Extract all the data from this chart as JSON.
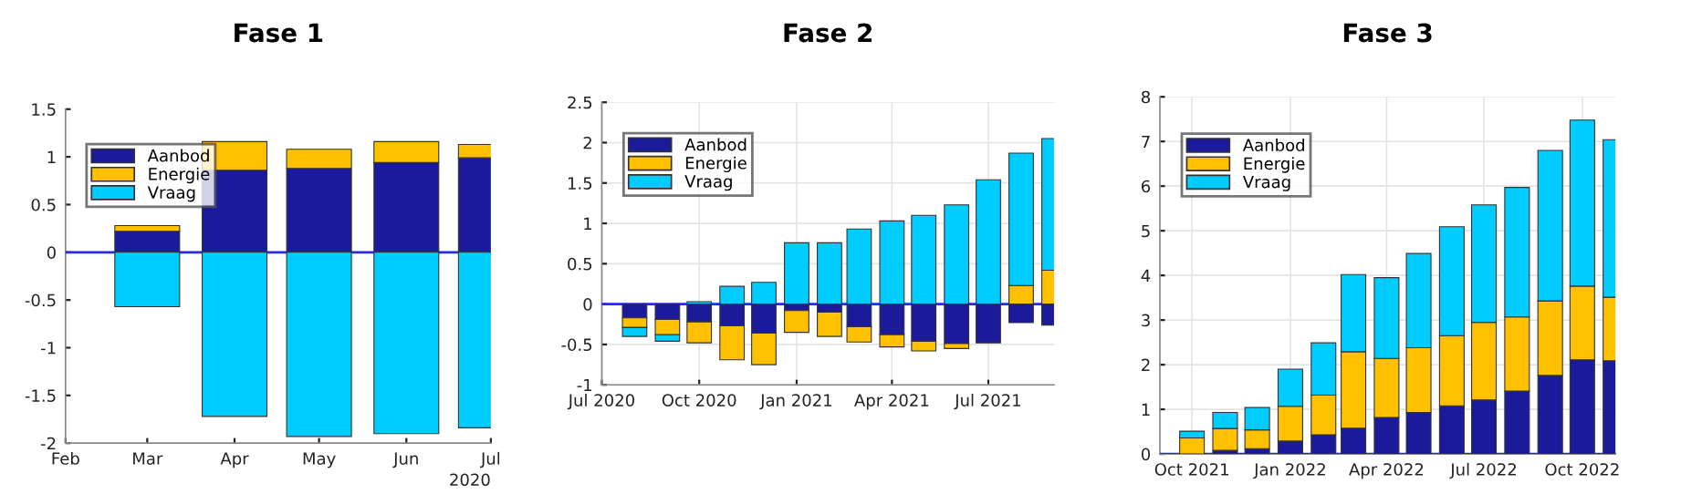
{
  "chart_data": [
    {
      "type": "bar",
      "title": "Fase 1",
      "stacked": true,
      "legend": "top left",
      "grid": false,
      "x": [
        "2020-03",
        "2020-04",
        "2020-05",
        "2020-06",
        "2020-07"
      ],
      "series": [
        {
          "name": "Aanbod",
          "color": "#1a1a9a",
          "values": [
            0.22,
            0.86,
            0.88,
            0.94,
            0.99
          ]
        },
        {
          "name": "Energie",
          "color": "#ffc000",
          "values": [
            0.06,
            0.3,
            0.2,
            0.22,
            0.14
          ]
        },
        {
          "name": "Vraag",
          "color": "#00ccff",
          "values": [
            -0.57,
            -1.72,
            -1.93,
            -1.9,
            -1.84
          ]
        }
      ],
      "xlim": [
        "2020-02",
        "2020-07"
      ],
      "xticks": [
        {
          "value": "2020-02",
          "label": "Feb"
        },
        {
          "value": "2020-03",
          "label": "Mar"
        },
        {
          "value": "2020-04",
          "label": "Apr"
        },
        {
          "value": "2020-05",
          "label": "May"
        },
        {
          "value": "2020-06",
          "label": "Jun"
        },
        {
          "value": "2020-07",
          "label": "Jul"
        }
      ],
      "ylim": [
        -2,
        1.5
      ],
      "yticks": [
        -2,
        -1.5,
        -1,
        -0.5,
        0,
        0.5,
        1,
        1.5
      ],
      "ref_lines": [
        {
          "axis": "y",
          "value": 0,
          "color": "#2a2ae0"
        }
      ],
      "annotations": [
        "2020"
      ]
    },
    {
      "type": "bar",
      "title": "Fase 2",
      "stacked": true,
      "legend": "top left",
      "grid": true,
      "x": [
        "2020-08",
        "2020-09",
        "2020-10",
        "2020-11",
        "2020-12",
        "2021-01",
        "2021-02",
        "2021-03",
        "2021-04",
        "2021-05",
        "2021-06",
        "2021-07",
        "2021-08",
        "2021-09"
      ],
      "series": [
        {
          "name": "Aanbod",
          "color": "#1a1a9a",
          "values": [
            -0.17,
            -0.19,
            -0.22,
            -0.27,
            -0.36,
            -0.08,
            -0.1,
            -0.28,
            -0.38,
            -0.46,
            -0.49,
            -0.48,
            -0.23,
            -0.26
          ]
        },
        {
          "name": "Energie",
          "color": "#ffc000",
          "values": [
            -0.12,
            -0.19,
            -0.26,
            -0.42,
            -0.39,
            -0.27,
            -0.3,
            -0.19,
            -0.15,
            -0.12,
            -0.06,
            null,
            0.23,
            0.42
          ]
        },
        {
          "name": "Vraag",
          "color": "#00ccff",
          "values": [
            -0.11,
            -0.08,
            0.03,
            0.22,
            0.27,
            0.76,
            0.76,
            0.93,
            1.03,
            1.1,
            1.23,
            1.54,
            1.64,
            1.63
          ]
        }
      ],
      "xlim": [
        "2020-07",
        "2021-09"
      ],
      "xticks": [
        {
          "value": "2020-07",
          "label": "Jul 2020"
        },
        {
          "value": "2020-10",
          "label": "Oct 2020"
        },
        {
          "value": "2021-01",
          "label": "Jan 2021"
        },
        {
          "value": "2021-04",
          "label": "Apr 2021"
        },
        {
          "value": "2021-07",
          "label": "Jul 2021"
        }
      ],
      "ylim": [
        -1,
        2.5
      ],
      "yticks": [
        -1,
        -0.5,
        0,
        0.5,
        1,
        1.5,
        2,
        2.5
      ],
      "ref_lines": [
        {
          "axis": "y",
          "value": 0,
          "color": "#2a2ae0"
        }
      ]
    },
    {
      "type": "bar",
      "title": "Fase 3",
      "stacked": true,
      "legend": "top left",
      "grid": true,
      "x": [
        "2021-10",
        "2021-11",
        "2021-12",
        "2022-01",
        "2022-02",
        "2022-03",
        "2022-04",
        "2022-05",
        "2022-06",
        "2022-07",
        "2022-08",
        "2022-09",
        "2022-10",
        "2022-11"
      ],
      "series": [
        {
          "name": "Aanbod",
          "color": "#1a1a9a",
          "values": [
            0,
            0.08,
            0.12,
            0.29,
            0.43,
            0.58,
            0.82,
            0.93,
            1.08,
            1.21,
            1.41,
            1.76,
            2.11,
            2.09
          ]
        },
        {
          "name": "Energie",
          "color": "#ffc000",
          "values": [
            0.36,
            0.49,
            0.42,
            0.78,
            0.89,
            1.71,
            1.32,
            1.45,
            1.57,
            1.74,
            1.66,
            1.67,
            1.65,
            1.42
          ]
        },
        {
          "name": "Vraag",
          "color": "#00ccff",
          "values": [
            0.15,
            0.36,
            0.5,
            0.83,
            1.17,
            1.73,
            1.81,
            2.11,
            2.44,
            2.63,
            2.9,
            3.37,
            3.72,
            3.53
          ]
        }
      ],
      "xlim": [
        "2021-09",
        "2022-11"
      ],
      "xticks": [
        {
          "value": "2021-10",
          "label": "Oct 2021"
        },
        {
          "value": "2022-01",
          "label": "Jan 2022"
        },
        {
          "value": "2022-04",
          "label": "Apr 2022"
        },
        {
          "value": "2022-07",
          "label": "Jul 2022"
        },
        {
          "value": "2022-10",
          "label": "Oct 2022"
        }
      ],
      "ylim": [
        0,
        8
      ],
      "yticks": [
        0,
        1,
        2,
        3,
        4,
        5,
        6,
        7,
        8
      ],
      "ref_lines": [
        {
          "axis": "y",
          "value": 0,
          "color": "#2a2ae0"
        }
      ]
    }
  ]
}
